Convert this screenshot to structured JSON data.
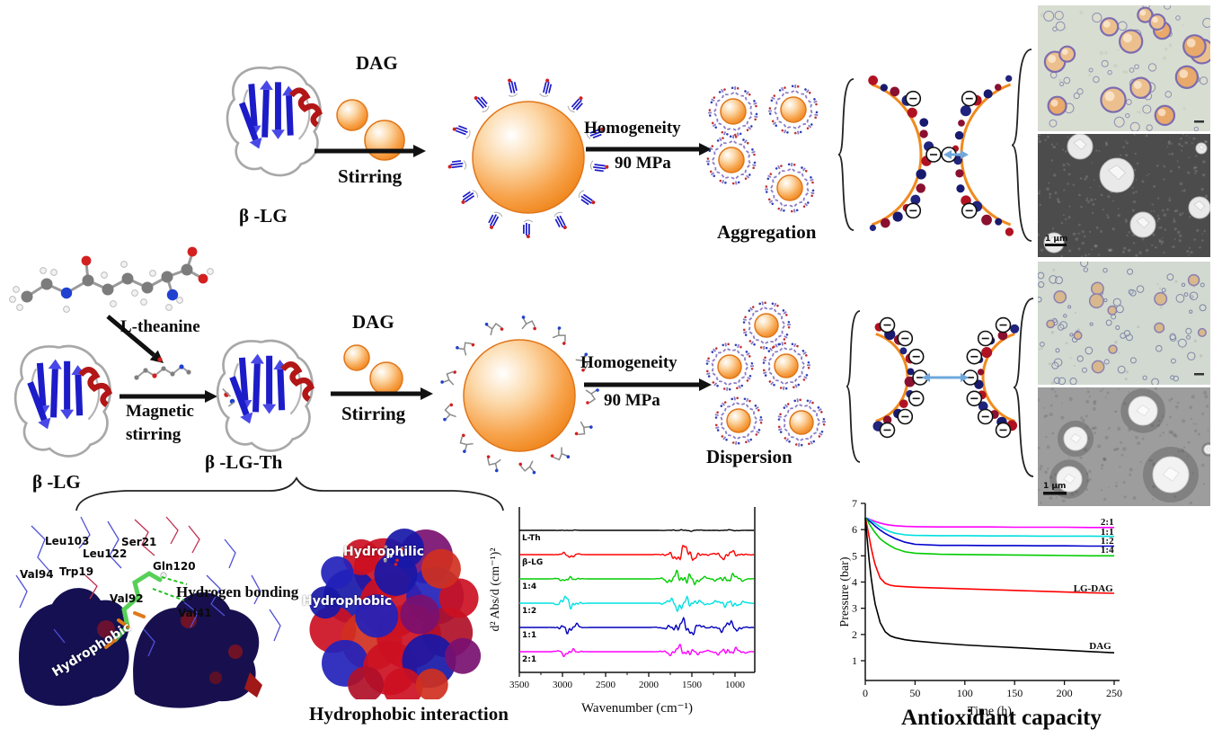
{
  "top_row": {
    "beta_lg_label": "β -LG",
    "dag_label": "DAG",
    "stirring_label": "Stirring",
    "homogeneity_label": "Homogeneity",
    "pressure_label": "90 MPa",
    "aggregation_label": "Aggregation"
  },
  "middle_row": {
    "ltheanine_label": "L-theanine",
    "beta_lg_label": "β -LG",
    "magnetic_line1": "Magnetic",
    "magnetic_line2": "stirring",
    "conjugate_label": "β -LG-Th",
    "dag_label": "DAG",
    "stirring_label": "Stirring",
    "homogeneity_label": "Homogeneity",
    "pressure_label": "90 MPa",
    "dispersion_label": "Dispersion"
  },
  "micrographs": {
    "tem_top_scale": "1 μm",
    "tem_bottom_scale": "1 μm"
  },
  "docking": {
    "residues": [
      "Leu103",
      "Leu122",
      "Ser21",
      "Val94",
      "Trp19",
      "Gln120",
      "Val92",
      "Val41"
    ],
    "hydrogen_bonding_label": "Hydrogen bonding",
    "hydrophobic_label": "Hydrophobic"
  },
  "surface": {
    "hydrophilic_label": "Hydrophilic",
    "hydrophobic_label": "Hydrophobic",
    "caption": "Hydrophobic interaction"
  },
  "palette": {
    "orange": "#f59a3c",
    "orange_dark": "#e0761a",
    "arrow_black": "#111111",
    "charge_arrow_blue": "#6fa8dc",
    "ribbon_blue": "#1c1cc8",
    "ribbon_red": "#b21616"
  },
  "chart_data": [
    {
      "type": "line",
      "title": "",
      "xlabel": "Wavenumber (cm⁻¹)",
      "ylabel": "d² Abs/d (cm⁻¹)²",
      "x_ticks": [
        3500,
        3000,
        2500,
        2000,
        1500,
        1000
      ],
      "x_range": [
        3500,
        775
      ],
      "grid": false,
      "legend_position": "left-of-each-trace",
      "note": "Stacked second-derivative FTIR spectra; activity bands near 3000-2800 and 1800-900 cm⁻¹; band_amps = relative intensity of [CH-stretch, amide, fingerprint] bands",
      "series": [
        {
          "name": "L-Th",
          "color": "#000000",
          "band_amps": [
            0.6,
            1.0,
            0.6
          ]
        },
        {
          "name": "β-LG",
          "color": "#ff0000",
          "band_amps": [
            3.0,
            9.0,
            5.0
          ]
        },
        {
          "name": "1:4",
          "color": "#00cc00",
          "band_amps": [
            3.5,
            10.0,
            6.0
          ]
        },
        {
          "name": "1:2",
          "color": "#00e0e0",
          "band_amps": [
            8.0,
            9.0,
            6.0
          ]
        },
        {
          "name": "1:1",
          "color": "#0000bb",
          "band_amps": [
            7.0,
            9.0,
            6.0
          ]
        },
        {
          "name": "2:1",
          "color": "#ff00ff",
          "band_amps": [
            5.0,
            7.0,
            6.0
          ]
        }
      ]
    },
    {
      "type": "line",
      "title": "Antioxidant capacity",
      "xlabel": "Time (h)",
      "ylabel": "Pressure (bar)",
      "x_ticks": [
        0,
        50,
        100,
        150,
        200,
        250
      ],
      "y_ticks": [
        1,
        2,
        3,
        4,
        5,
        6,
        7
      ],
      "xlim": [
        0,
        250
      ],
      "ylim": [
        0.3,
        7
      ],
      "grid": false,
      "x": [
        0,
        2,
        4,
        6,
        8,
        10,
        15,
        20,
        25,
        30,
        40,
        50,
        75,
        100,
        125,
        150,
        175,
        200,
        225,
        250
      ],
      "series": [
        {
          "name": "2:1",
          "color": "#ff00ff",
          "label_t": 243,
          "label_v": 6.31,
          "values": [
            6.45,
            6.43,
            6.4,
            6.37,
            6.34,
            6.31,
            6.25,
            6.2,
            6.17,
            6.15,
            6.12,
            6.11,
            6.1,
            6.1,
            6.1,
            6.09,
            6.09,
            6.09,
            6.08,
            6.08
          ]
        },
        {
          "name": "1:1",
          "color": "#00dede",
          "label_t": 243,
          "label_v": 5.94,
          "values": [
            6.45,
            6.42,
            6.38,
            6.33,
            6.28,
            6.23,
            6.1,
            6.0,
            5.92,
            5.86,
            5.8,
            5.78,
            5.77,
            5.77,
            5.76,
            5.76,
            5.75,
            5.75,
            5.75,
            5.74
          ]
        },
        {
          "name": "1:2",
          "color": "#0000cc",
          "label_t": 243,
          "label_v": 5.59,
          "values": [
            6.45,
            6.4,
            6.33,
            6.27,
            6.2,
            6.13,
            5.98,
            5.85,
            5.75,
            5.66,
            5.52,
            5.44,
            5.4,
            5.4,
            5.39,
            5.39,
            5.38,
            5.38,
            5.37,
            5.37
          ]
        },
        {
          "name": "1:4",
          "color": "#00cc00",
          "label_t": 243,
          "label_v": 5.25,
          "values": [
            6.45,
            6.35,
            6.22,
            6.1,
            5.98,
            5.88,
            5.65,
            5.5,
            5.38,
            5.28,
            5.15,
            5.1,
            5.06,
            5.05,
            5.04,
            5.03,
            5.02,
            5.01,
            5.0,
            5.0
          ]
        },
        {
          "name": "LG-DAG",
          "color": "#ff0000",
          "label_t": 229,
          "label_v": 3.78,
          "values": [
            6.45,
            6.1,
            5.7,
            5.3,
            4.95,
            4.65,
            4.15,
            3.95,
            3.88,
            3.85,
            3.82,
            3.8,
            3.77,
            3.74,
            3.71,
            3.68,
            3.65,
            3.62,
            3.59,
            3.57
          ]
        },
        {
          "name": "DAG",
          "color": "#000000",
          "label_t": 236,
          "label_v": 1.58,
          "values": [
            6.45,
            5.6,
            4.8,
            4.15,
            3.6,
            3.15,
            2.45,
            2.1,
            1.95,
            1.88,
            1.8,
            1.75,
            1.67,
            1.6,
            1.55,
            1.5,
            1.45,
            1.4,
            1.35,
            1.3
          ]
        }
      ]
    }
  ]
}
